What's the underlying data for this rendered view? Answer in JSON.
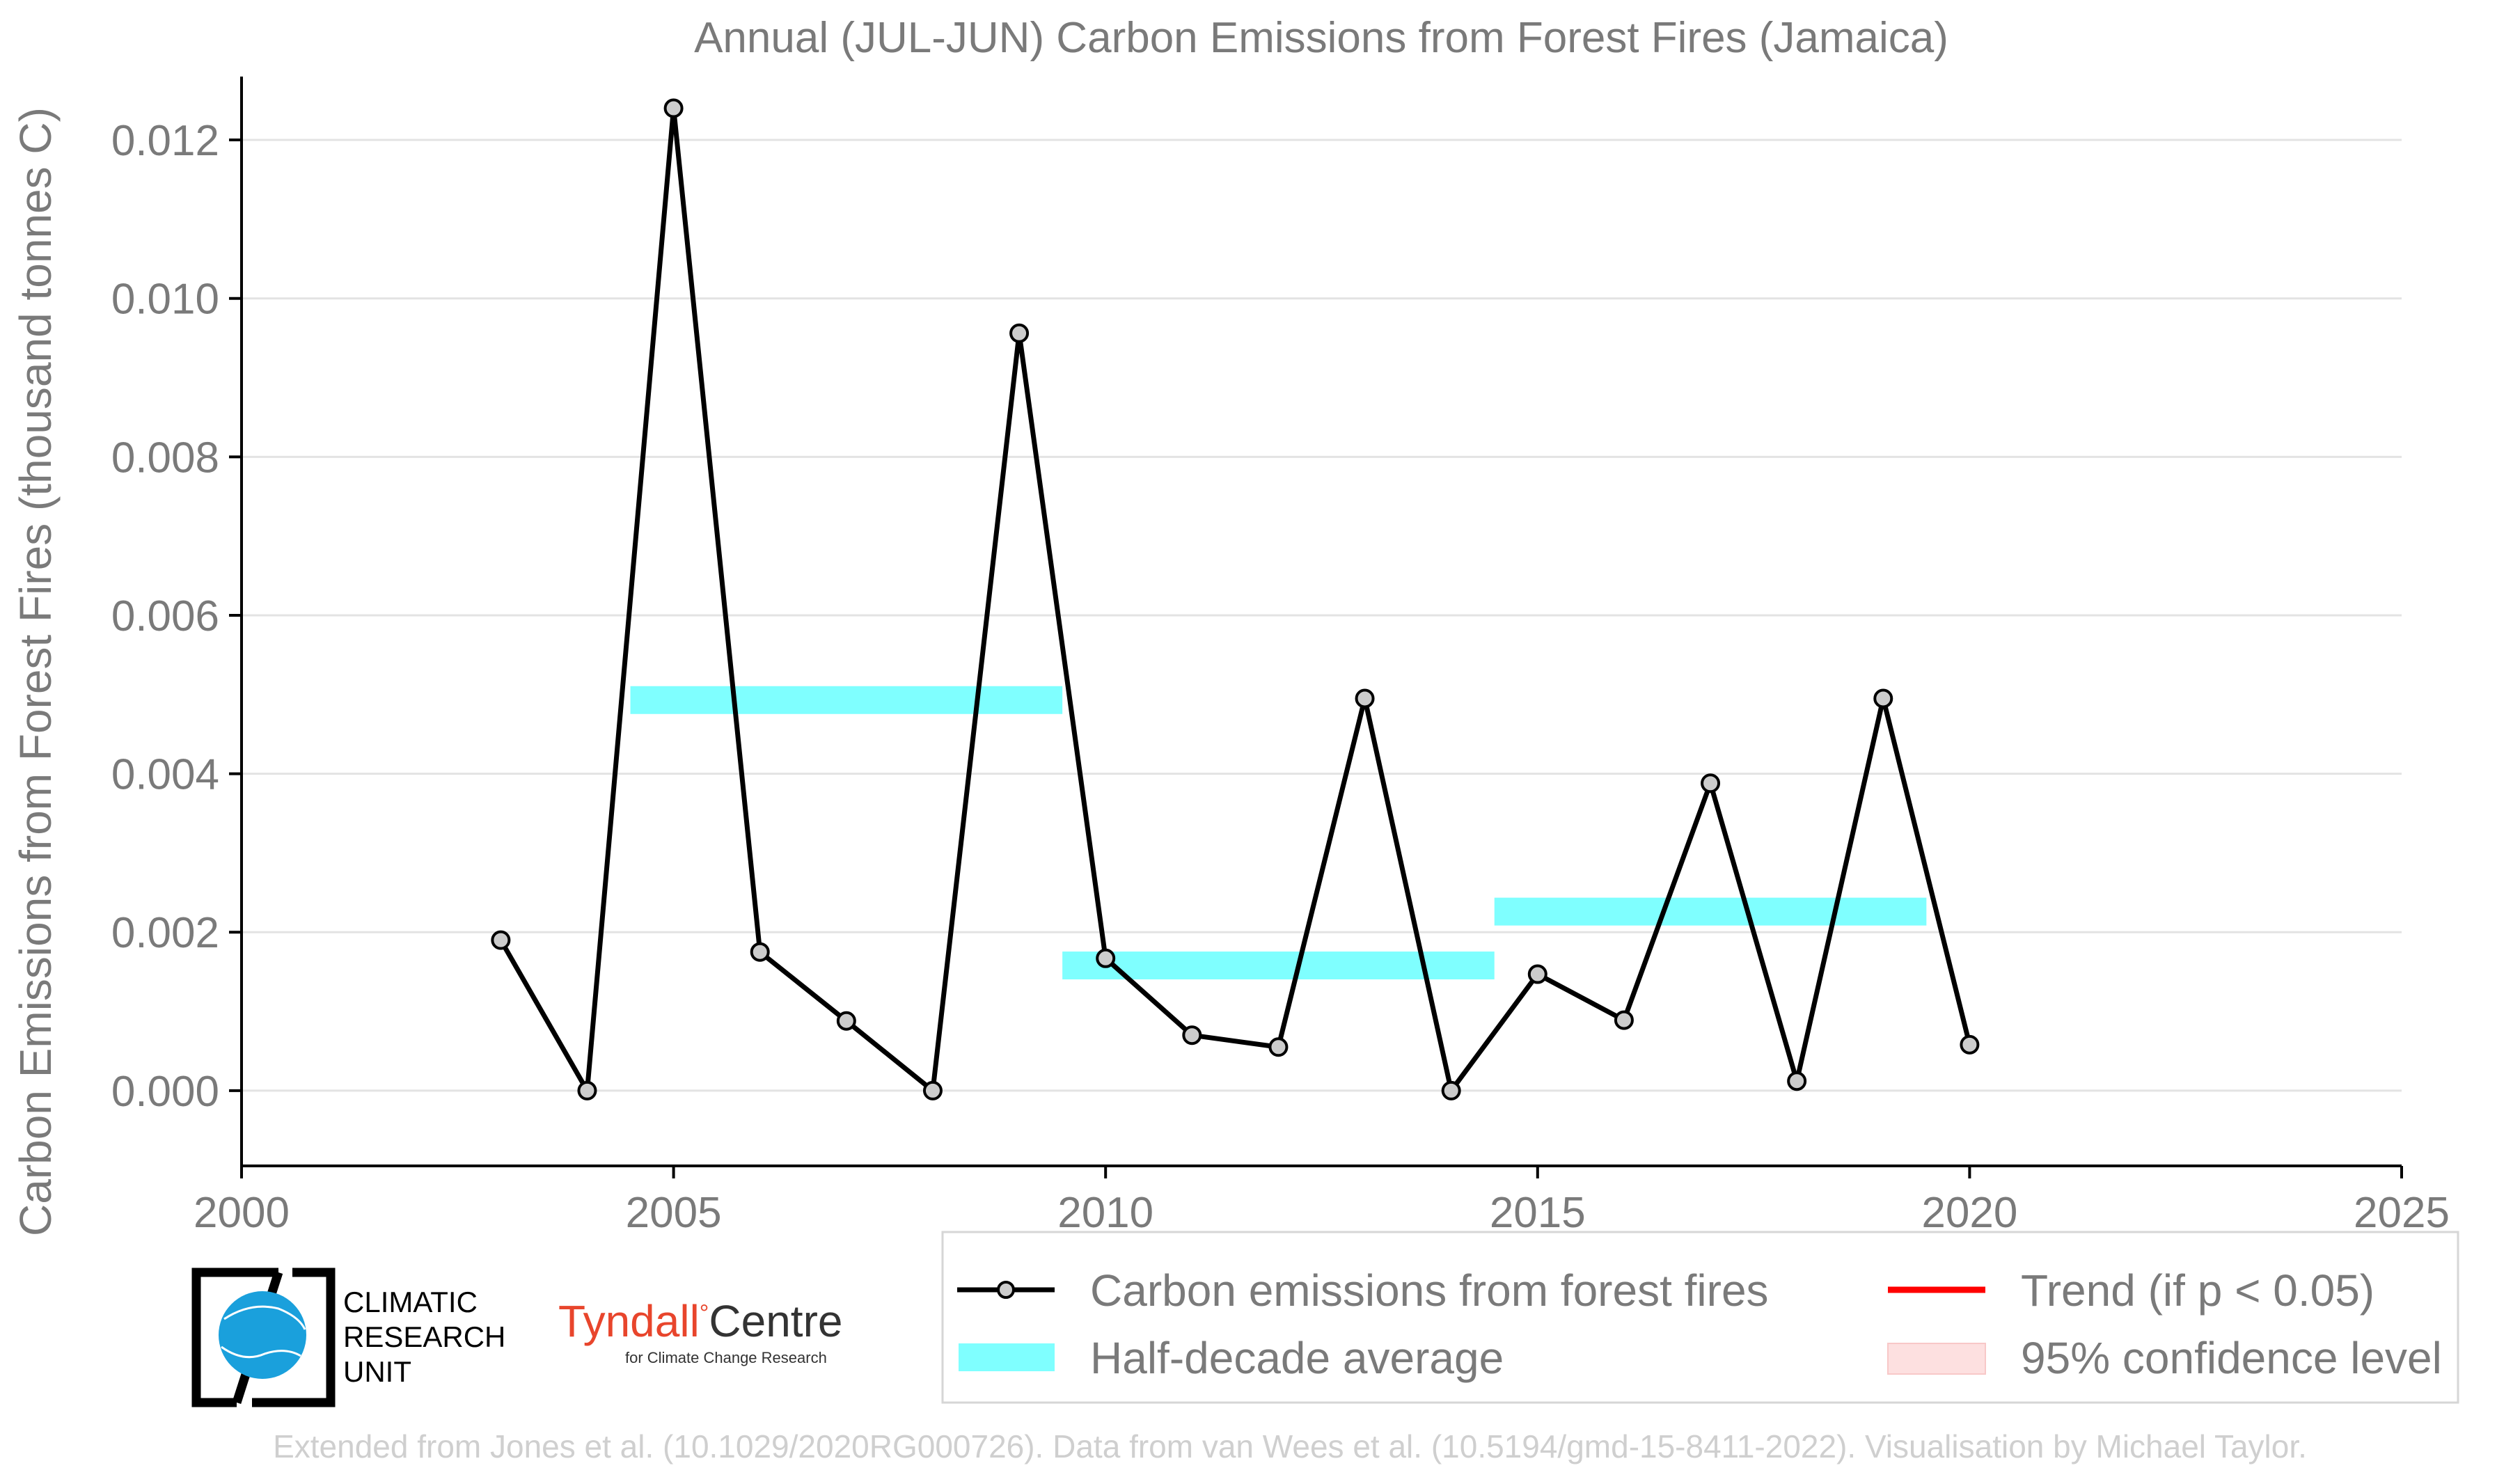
{
  "chart_data": {
    "type": "line",
    "title": "Annual (JUL-JUN) Carbon Emissions from Forest Fires (Jamaica)",
    "ylabel": "Carbon Emissions from Forest Fires (thousand tonnes C)",
    "xlabel": "",
    "xlim": [
      2000,
      2025
    ],
    "ylim": [
      -0.00095,
      0.0128
    ],
    "x_ticks": [
      "2000",
      "2005",
      "2010",
      "2015",
      "2020",
      "2025"
    ],
    "y_ticks": [
      "0.000",
      "0.002",
      "0.004",
      "0.006",
      "0.008",
      "0.010",
      "0.012"
    ],
    "grid": "horizontal",
    "series": [
      {
        "name": "Carbon emissions from forest fires",
        "color": "#000000",
        "marker_fill": "#cccccc",
        "x": [
          2003,
          2004,
          2005,
          2006,
          2007,
          2008,
          2009,
          2010,
          2011,
          2012,
          2013,
          2014,
          2015,
          2016,
          2017,
          2018,
          2019,
          2020
        ],
        "y": [
          0.0019,
          0.0,
          0.0124,
          0.00175,
          0.00088,
          0.0,
          0.00956,
          0.00167,
          0.0007,
          0.00055,
          0.00495,
          0.0,
          0.00147,
          0.00089,
          0.00388,
          0.00012,
          0.00495,
          0.00058
        ]
      }
    ],
    "half_decade_average": {
      "name": "Half-decade average",
      "color": "#7fffff",
      "segments": [
        {
          "x_start": 2004.5,
          "x_end": 2009.5,
          "value": 0.00493
        },
        {
          "x_start": 2009.5,
          "x_end": 2014.5,
          "value": 0.00158
        },
        {
          "x_start": 2014.5,
          "x_end": 2019.5,
          "value": 0.00226
        }
      ]
    },
    "legend": {
      "placement": "bottom-right",
      "items": [
        {
          "label": "Carbon emissions from forest fires",
          "kind": "line-marker",
          "color": "#000000"
        },
        {
          "label": "Trend (if p < 0.05)",
          "kind": "line",
          "color": "#ff0000"
        },
        {
          "label": "Half-decade average",
          "kind": "band",
          "color": "#7fffff"
        },
        {
          "label": "95% confidence level",
          "kind": "band",
          "color": "#fde0e0"
        }
      ]
    }
  },
  "logos": {
    "cru": [
      "CLIMATIC",
      "RESEARCH",
      "UNIT"
    ],
    "tyndall_main": "Tyndall",
    "tyndall_degree": "°",
    "tyndall_centre": "Centre",
    "tyndall_sub": "for Climate Change Research"
  },
  "credit": "Extended from Jones et al. (10.1029/2020RG000726). Data from van Wees et al. (10.5194/gmd-15-8411-2022). Visualisation by Michael Taylor."
}
